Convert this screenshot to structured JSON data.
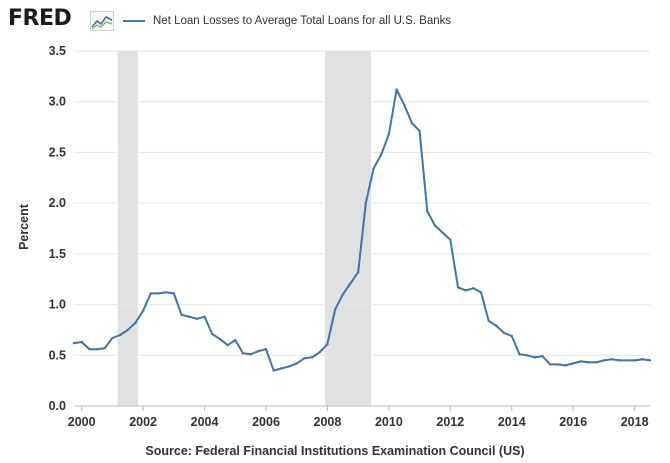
{
  "header": {
    "logo_text": "FRED",
    "logo_icon": "line-chart-icon"
  },
  "colors": {
    "series": "#4572a7",
    "recession": "#e1e1e1",
    "grid": "#e6e6e6",
    "text": "#333333"
  },
  "chart_data": {
    "type": "line",
    "title": "",
    "xlabel": "",
    "ylabel": "Percent",
    "xlim": [
      1999.75,
      2018.5
    ],
    "ylim": [
      0,
      3.5
    ],
    "x_ticks": [
      2000,
      2002,
      2004,
      2006,
      2008,
      2010,
      2012,
      2014,
      2016,
      2018
    ],
    "y_ticks": [
      "0.0",
      "0.5",
      "1.0",
      "1.5",
      "2.0",
      "2.5",
      "3.0",
      "3.5"
    ],
    "grid": "horizontal",
    "legend": "top",
    "recessions": [
      {
        "start": 2001.17,
        "end": 2001.83
      },
      {
        "start": 2007.92,
        "end": 2009.42
      }
    ],
    "series": [
      {
        "name": "Net Loan Losses to Average Total Loans for all U.S. Banks",
        "x": [
          1999.75,
          2000.0,
          2000.25,
          2000.5,
          2000.75,
          2001.0,
          2001.25,
          2001.5,
          2001.75,
          2002.0,
          2002.25,
          2002.5,
          2002.75,
          2003.0,
          2003.25,
          2003.5,
          2003.75,
          2004.0,
          2004.25,
          2004.5,
          2004.75,
          2005.0,
          2005.25,
          2005.5,
          2005.75,
          2006.0,
          2006.25,
          2006.5,
          2006.75,
          2007.0,
          2007.25,
          2007.5,
          2007.75,
          2008.0,
          2008.25,
          2008.5,
          2008.75,
          2009.0,
          2009.25,
          2009.5,
          2009.75,
          2010.0,
          2010.25,
          2010.5,
          2010.75,
          2011.0,
          2011.25,
          2011.5,
          2011.75,
          2012.0,
          2012.25,
          2012.5,
          2012.75,
          2013.0,
          2013.25,
          2013.5,
          2013.75,
          2014.0,
          2014.25,
          2014.5,
          2014.75,
          2015.0,
          2015.25,
          2015.5,
          2015.75,
          2016.0,
          2016.25,
          2016.5,
          2016.75,
          2017.0,
          2017.25,
          2017.5,
          2017.75,
          2018.0,
          2018.25,
          2018.5
        ],
        "values": [
          0.62,
          0.63,
          0.56,
          0.56,
          0.57,
          0.67,
          0.7,
          0.75,
          0.82,
          0.94,
          1.11,
          1.11,
          1.12,
          1.11,
          0.9,
          0.88,
          0.86,
          0.88,
          0.71,
          0.66,
          0.6,
          0.65,
          0.52,
          0.51,
          0.54,
          0.56,
          0.35,
          0.37,
          0.39,
          0.42,
          0.47,
          0.48,
          0.53,
          0.61,
          0.95,
          1.1,
          1.21,
          1.32,
          2.0,
          2.34,
          2.48,
          2.68,
          3.12,
          2.97,
          2.79,
          2.71,
          1.92,
          1.78,
          1.71,
          1.64,
          1.17,
          1.14,
          1.16,
          1.12,
          0.84,
          0.79,
          0.72,
          0.69,
          0.51,
          0.5,
          0.48,
          0.49,
          0.41,
          0.41,
          0.4,
          0.42,
          0.44,
          0.43,
          0.43,
          0.45,
          0.46,
          0.45,
          0.45,
          0.45,
          0.46,
          0.45
        ]
      }
    ]
  },
  "footer": {
    "source": "Source: Federal Financial Institutions Examination Council (US)"
  }
}
